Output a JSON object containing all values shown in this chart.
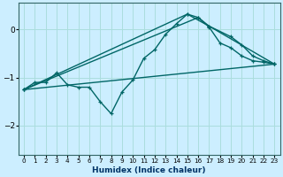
{
  "xlabel": "Humidex (Indice chaleur)",
  "bg_color": "#cceeff",
  "grid_color": "#aadddd",
  "line_color": "#006666",
  "xlim": [
    -0.5,
    23.5
  ],
  "ylim": [
    -2.6,
    0.55
  ],
  "yticks": [
    0,
    -1,
    -2
  ],
  "xticks": [
    0,
    1,
    2,
    3,
    4,
    5,
    6,
    7,
    8,
    9,
    10,
    11,
    12,
    13,
    14,
    15,
    16,
    17,
    18,
    19,
    20,
    21,
    22,
    23
  ],
  "series1_x": [
    0,
    1,
    2,
    3,
    4,
    5,
    6,
    7,
    8,
    9,
    10,
    11,
    12,
    13,
    14,
    15,
    16,
    17,
    18,
    19,
    20,
    21,
    22,
    23
  ],
  "series1_y": [
    -1.25,
    -1.1,
    -1.1,
    -0.9,
    -1.15,
    -1.2,
    -1.2,
    -1.5,
    -1.75,
    -1.3,
    -1.05,
    -0.6,
    -0.42,
    -0.1,
    0.12,
    0.32,
    0.25,
    0.05,
    -0.28,
    -0.38,
    -0.55,
    -0.65,
    -0.68,
    -0.72
  ],
  "series2_x": [
    0,
    15,
    17,
    19,
    20,
    21,
    22,
    23
  ],
  "series2_y": [
    -1.25,
    0.32,
    0.07,
    -0.15,
    -0.32,
    -0.55,
    -0.65,
    -0.72
  ],
  "series3_x": [
    0,
    16,
    17,
    23
  ],
  "series3_y": [
    -1.25,
    0.25,
    0.07,
    -0.72
  ],
  "series4_x": [
    0,
    23
  ],
  "series4_y": [
    -1.25,
    -0.72
  ],
  "marker_size": 3.5,
  "line_width": 1.0
}
